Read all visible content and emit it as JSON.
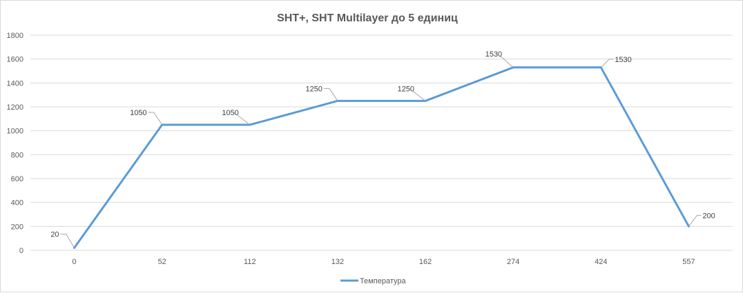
{
  "chart_data": {
    "type": "line",
    "title": "SHT+, SHT Multilayer до 5 единиц",
    "xlabel": "",
    "ylabel": "",
    "categories": [
      "0",
      "52",
      "112",
      "132",
      "162",
      "274",
      "424",
      "557"
    ],
    "series": [
      {
        "name": "Температура",
        "values": [
          20,
          1050,
          1050,
          1250,
          1250,
          1530,
          1530,
          200
        ],
        "color": "#5b9bd5"
      }
    ],
    "yticks": [
      0,
      200,
      400,
      600,
      800,
      1000,
      1200,
      1400,
      1600,
      1800
    ],
    "ylim": [
      0,
      1800
    ],
    "grid": true,
    "data_labels": true,
    "legend_position": "bottom"
  }
}
